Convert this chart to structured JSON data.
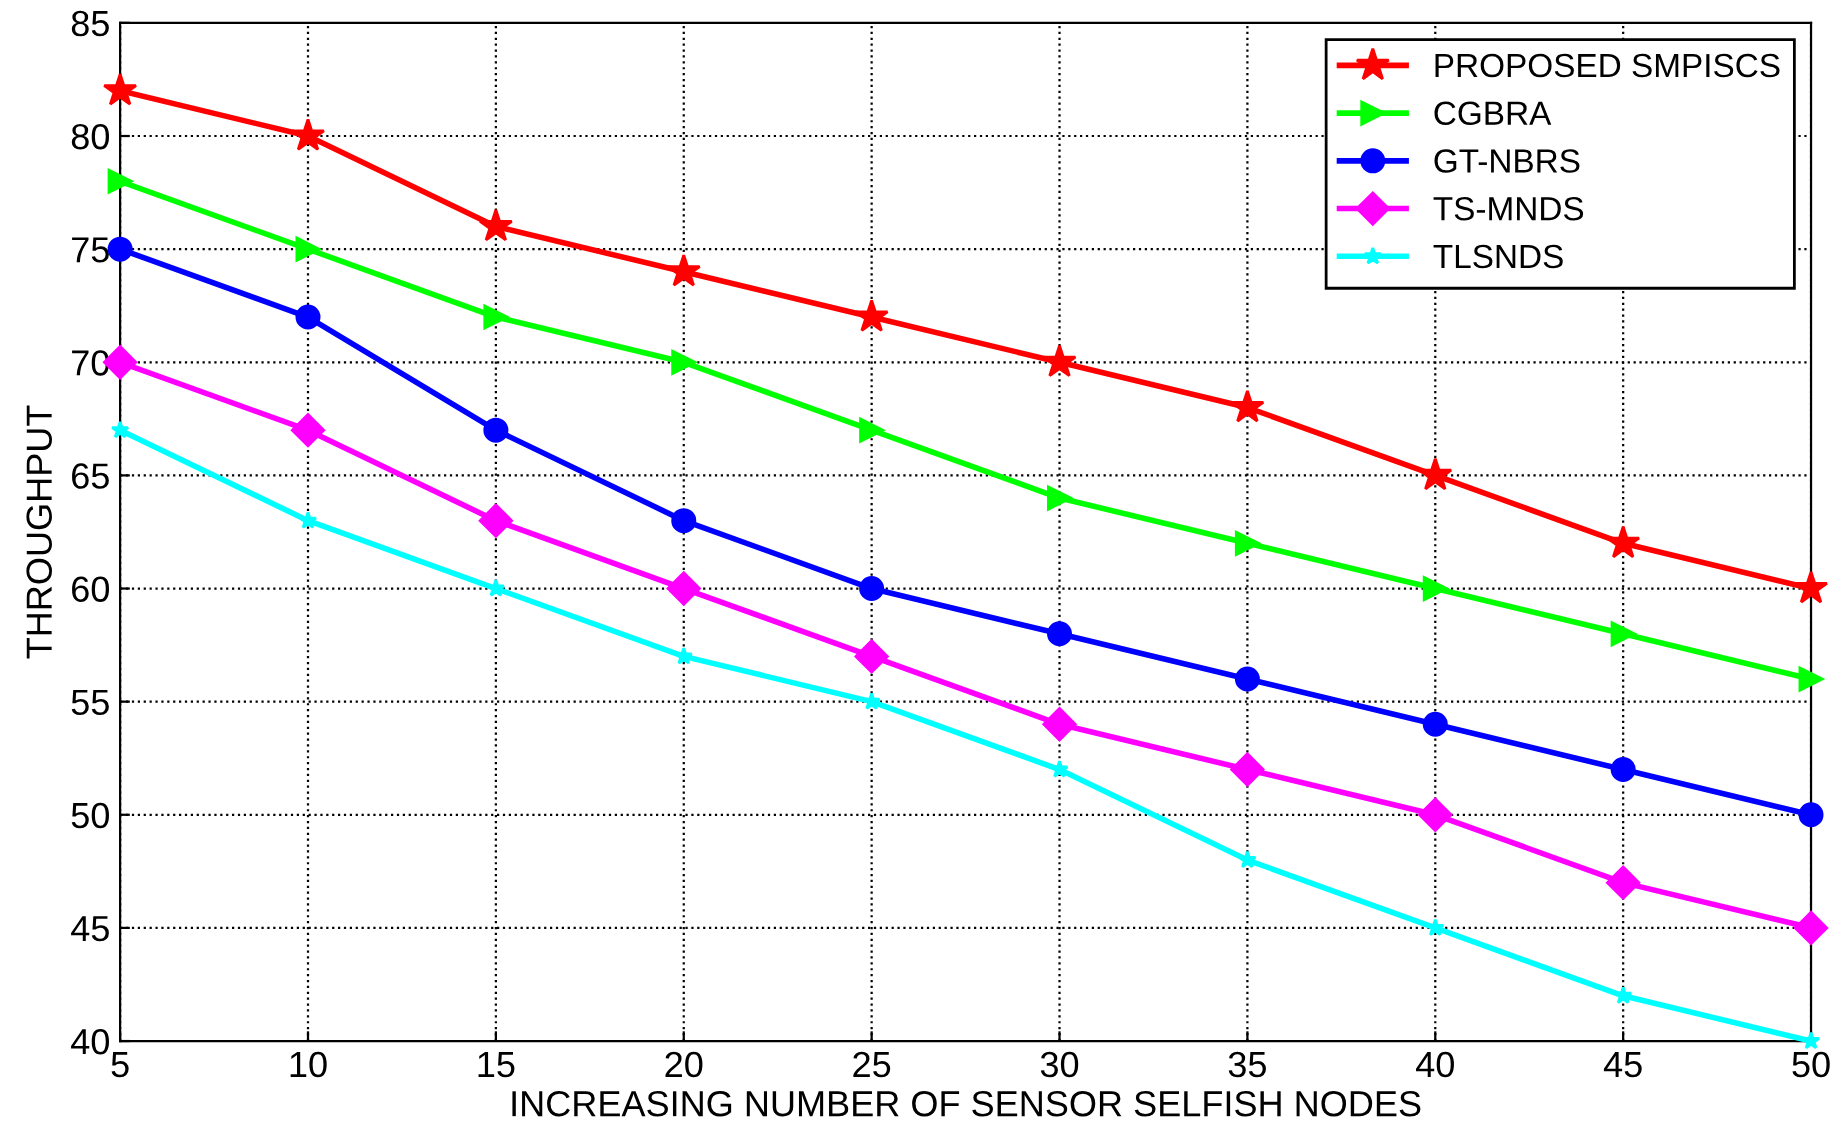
{
  "chart_data": {
    "type": "line",
    "xlabel": "INCREASING NUMBER OF SENSOR SELFISH NODES",
    "ylabel": "THROUGHPUT",
    "x": [
      5,
      10,
      15,
      20,
      25,
      30,
      35,
      40,
      45,
      50
    ],
    "series": [
      {
        "name": "PROPOSED SMPISCS",
        "color": "#ff0000",
        "marker": "star",
        "values": [
          82,
          80,
          76,
          74,
          72,
          70,
          68,
          65,
          62,
          60
        ]
      },
      {
        "name": "CGBRA",
        "color": "#00ff00",
        "marker": "triangle",
        "values": [
          78,
          75,
          72,
          70,
          67,
          64,
          62,
          60,
          58,
          56
        ]
      },
      {
        "name": "GT-NBRS",
        "color": "#0000ff",
        "marker": "circle",
        "values": [
          75,
          72,
          67,
          63,
          60,
          58,
          56,
          54,
          52,
          50
        ]
      },
      {
        "name": "TS-MNDS",
        "color": "#ff00ff",
        "marker": "diamond",
        "values": [
          70,
          67,
          63,
          60,
          57,
          54,
          52,
          50,
          47,
          45
        ]
      },
      {
        "name": "TLSNDS",
        "color": "#00ffff",
        "marker": "star",
        "values": [
          67,
          63,
          60,
          57,
          55,
          52,
          48,
          45,
          42,
          40
        ]
      }
    ],
    "xlim": [
      5,
      50
    ],
    "xticks": [
      5,
      10,
      15,
      20,
      25,
      30,
      35,
      40,
      45,
      50
    ],
    "ylim": [
      40,
      85
    ],
    "yticks": [
      40,
      45,
      50,
      55,
      60,
      65,
      70,
      75,
      80,
      85
    ],
    "grid": true,
    "legend": "top right",
    "line_style": "solid"
  }
}
